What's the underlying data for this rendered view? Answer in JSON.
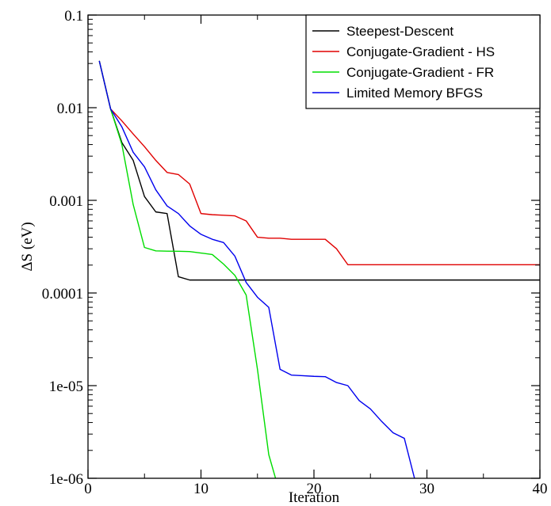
{
  "chart_data": {
    "type": "line",
    "xlabel": "Iteration",
    "ylabel": "ΔS (eV)",
    "xlim": [
      0,
      40
    ],
    "ylim": [
      1e-06,
      0.1
    ],
    "yscale": "log",
    "grid": false,
    "legend_position": "top-right",
    "x_ticks": [
      {
        "value": 0,
        "label": "0"
      },
      {
        "value": 10,
        "label": "10"
      },
      {
        "value": 20,
        "label": "20"
      },
      {
        "value": 30,
        "label": "30"
      },
      {
        "value": 40,
        "label": "40"
      }
    ],
    "y_ticks": [
      {
        "value": 0.1,
        "label": "0.1"
      },
      {
        "value": 0.01,
        "label": "0.01"
      },
      {
        "value": 0.001,
        "label": "0.001"
      },
      {
        "value": 0.0001,
        "label": "0.0001"
      },
      {
        "value": 1e-05,
        "label": "1e-05"
      },
      {
        "value": 1e-06,
        "label": "1e-06"
      }
    ],
    "series": [
      {
        "name": "Steepest-Descent",
        "color": "#000000",
        "points": [
          [
            1,
            0.032
          ],
          [
            2,
            0.0097
          ],
          [
            3,
            0.0042
          ],
          [
            4,
            0.0027
          ],
          [
            5,
            0.0011
          ],
          [
            6,
            0.00075
          ],
          [
            7,
            0.00072
          ],
          [
            8,
            0.00015
          ],
          [
            9,
            0.000138
          ],
          [
            10,
            0.000138
          ],
          [
            20,
            0.000138
          ],
          [
            30,
            0.000138
          ],
          [
            40,
            0.000138
          ]
        ]
      },
      {
        "name": "Conjugate-Gradient - HS",
        "color": "#e00000",
        "points": [
          [
            1,
            0.032
          ],
          [
            2,
            0.0097
          ],
          [
            3,
            0.0072
          ],
          [
            4,
            0.0052
          ],
          [
            5,
            0.0038
          ],
          [
            6,
            0.0027
          ],
          [
            7,
            0.002
          ],
          [
            8,
            0.0019
          ],
          [
            9,
            0.0015
          ],
          [
            10,
            0.00072
          ],
          [
            11,
            0.0007
          ],
          [
            12,
            0.00069
          ],
          [
            13,
            0.00068
          ],
          [
            14,
            0.0006
          ],
          [
            15,
            0.0004
          ],
          [
            16,
            0.00039
          ],
          [
            17,
            0.00039
          ],
          [
            18,
            0.00038
          ],
          [
            19,
            0.00038
          ],
          [
            20,
            0.00038
          ],
          [
            21,
            0.00038
          ],
          [
            22,
            0.0003
          ],
          [
            23,
            0.000202
          ],
          [
            24,
            0.000202
          ],
          [
            30,
            0.000202
          ],
          [
            40,
            0.000202
          ]
        ]
      },
      {
        "name": "Conjugate-Gradient - FR",
        "color": "#00dd00",
        "points": [
          [
            1,
            0.032
          ],
          [
            2,
            0.0097
          ],
          [
            3,
            0.004
          ],
          [
            4,
            0.0009
          ],
          [
            5,
            0.00031
          ],
          [
            6,
            0.000285
          ],
          [
            7,
            0.000283
          ],
          [
            8,
            0.000282
          ],
          [
            9,
            0.00028
          ],
          [
            10,
            0.00027
          ],
          [
            11,
            0.00026
          ],
          [
            12,
            0.000205
          ],
          [
            13,
            0.000155
          ],
          [
            14,
            9.5e-05
          ],
          [
            15,
            1.5e-05
          ],
          [
            16,
            1.8e-06
          ],
          [
            16.6,
            1e-06
          ]
        ]
      },
      {
        "name": "Limited Memory BFGS",
        "color": "#0000ee",
        "points": [
          [
            1,
            0.032
          ],
          [
            2,
            0.0097
          ],
          [
            3,
            0.0062
          ],
          [
            4,
            0.0033
          ],
          [
            5,
            0.0023
          ],
          [
            6,
            0.0013
          ],
          [
            7,
            0.00087
          ],
          [
            8,
            0.00072
          ],
          [
            9,
            0.00053
          ],
          [
            10,
            0.00043
          ],
          [
            11,
            0.00038
          ],
          [
            12,
            0.00035
          ],
          [
            13,
            0.00025
          ],
          [
            14,
            0.00013
          ],
          [
            15,
            9e-05
          ],
          [
            16,
            7e-05
          ],
          [
            17,
            1.5e-05
          ],
          [
            18,
            1.3e-05
          ],
          [
            19,
            1.28e-05
          ],
          [
            20,
            1.26e-05
          ],
          [
            21,
            1.25e-05
          ],
          [
            22,
            1.08e-05
          ],
          [
            23,
            1e-05
          ],
          [
            24,
            6.9e-06
          ],
          [
            25,
            5.6e-06
          ],
          [
            26,
            4.1e-06
          ],
          [
            27,
            3.1e-06
          ],
          [
            28,
            2.7e-06
          ],
          [
            28.9,
            1e-06
          ]
        ]
      }
    ]
  }
}
